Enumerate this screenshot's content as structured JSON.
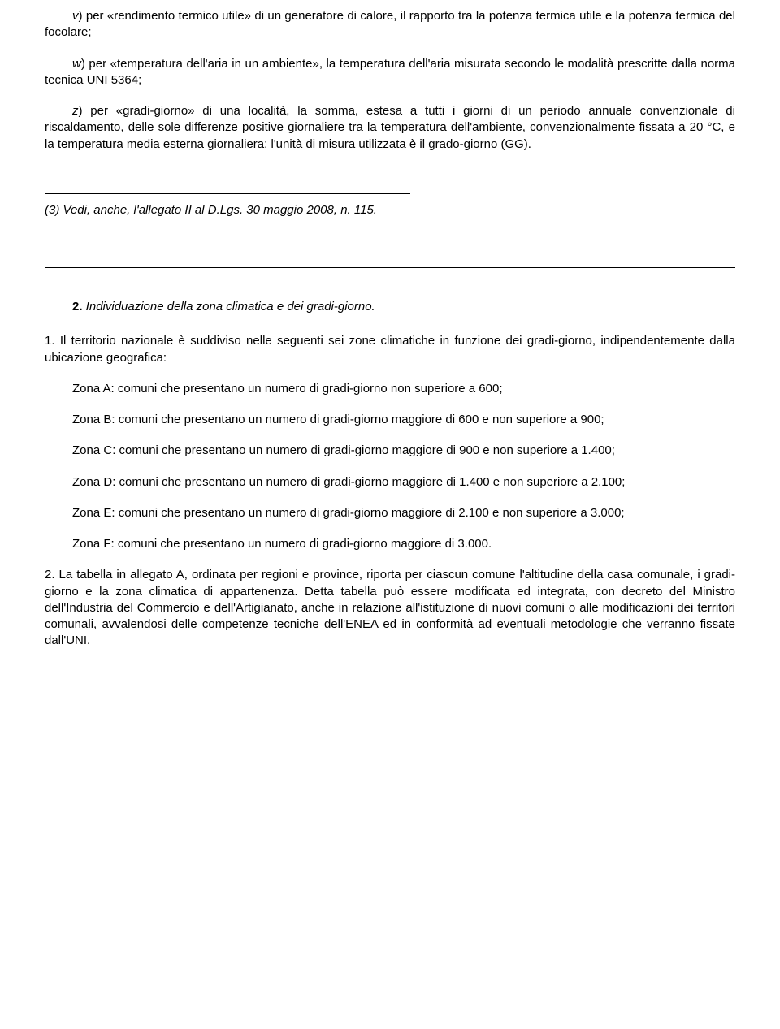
{
  "defs": {
    "v": {
      "label": "v",
      "text": ") per «rendimento termico utile» di un generatore di calore, il rapporto tra la potenza termica utile e la potenza termica del focolare;"
    },
    "w": {
      "label": "w",
      "text": ") per «temperatura dell'aria in un ambiente», la temperatura dell'aria misurata secondo le modalità prescritte dalla norma tecnica UNI 5364;"
    },
    "z": {
      "label": "z",
      "text": ") per «gradi-giorno» di una località, la somma, estesa a tutti i giorni di un periodo annuale convenzionale di riscaldamento, delle sole differenze positive giornaliere tra la temperatura dell'ambiente, convenzionalmente fissata a 20 °C, e la temperatura media esterna giornaliera; l'unità di misura utilizzata è il grado-giorno (GG)."
    }
  },
  "footnote": "(3) Vedi, anche, l'allegato II al D.Lgs. 30 maggio 2008, n. 115.",
  "section": {
    "number": "2.",
    "title": "  Individuazione della zona climatica e dei gradi-giorno."
  },
  "para1_intro": "1. Il territorio nazionale è suddiviso nelle seguenti sei zone climatiche in funzione dei gradi-giorno, indipendentemente dalla ubicazione geografica:",
  "zones": {
    "a": "Zona A: comuni che presentano un numero di gradi-giorno non superiore a 600;",
    "b": "Zona B: comuni che presentano un numero di gradi-giorno maggiore di 600 e non superiore a 900;",
    "c": "Zona C: comuni che presentano un numero di gradi-giorno maggiore di 900 e non superiore a 1.400;",
    "d": "Zona D: comuni che presentano un numero di gradi-giorno maggiore di 1.400 e non superiore a 2.100;",
    "e": "Zona E: comuni che presentano un numero di gradi-giorno maggiore di 2.100 e non superiore a 3.000;",
    "f": "Zona F: comuni che presentano un numero di gradi-giorno maggiore di 3.000."
  },
  "para2": "2. La tabella in allegato A, ordinata per regioni e province, riporta per ciascun comune l'altitudine della casa comunale, i gradi-giorno e la zona climatica di appartenenza. Detta tabella può essere modificata ed integrata, con decreto del Ministro dell'Industria del Commercio e dell'Artigianato, anche in relazione all'istituzione di nuovi comuni o alle modificazioni dei territori comunali, avvalendosi delle competenze tecniche dell'ENEA ed in conformità ad eventuali metodologie che verranno fissate dall'UNI."
}
